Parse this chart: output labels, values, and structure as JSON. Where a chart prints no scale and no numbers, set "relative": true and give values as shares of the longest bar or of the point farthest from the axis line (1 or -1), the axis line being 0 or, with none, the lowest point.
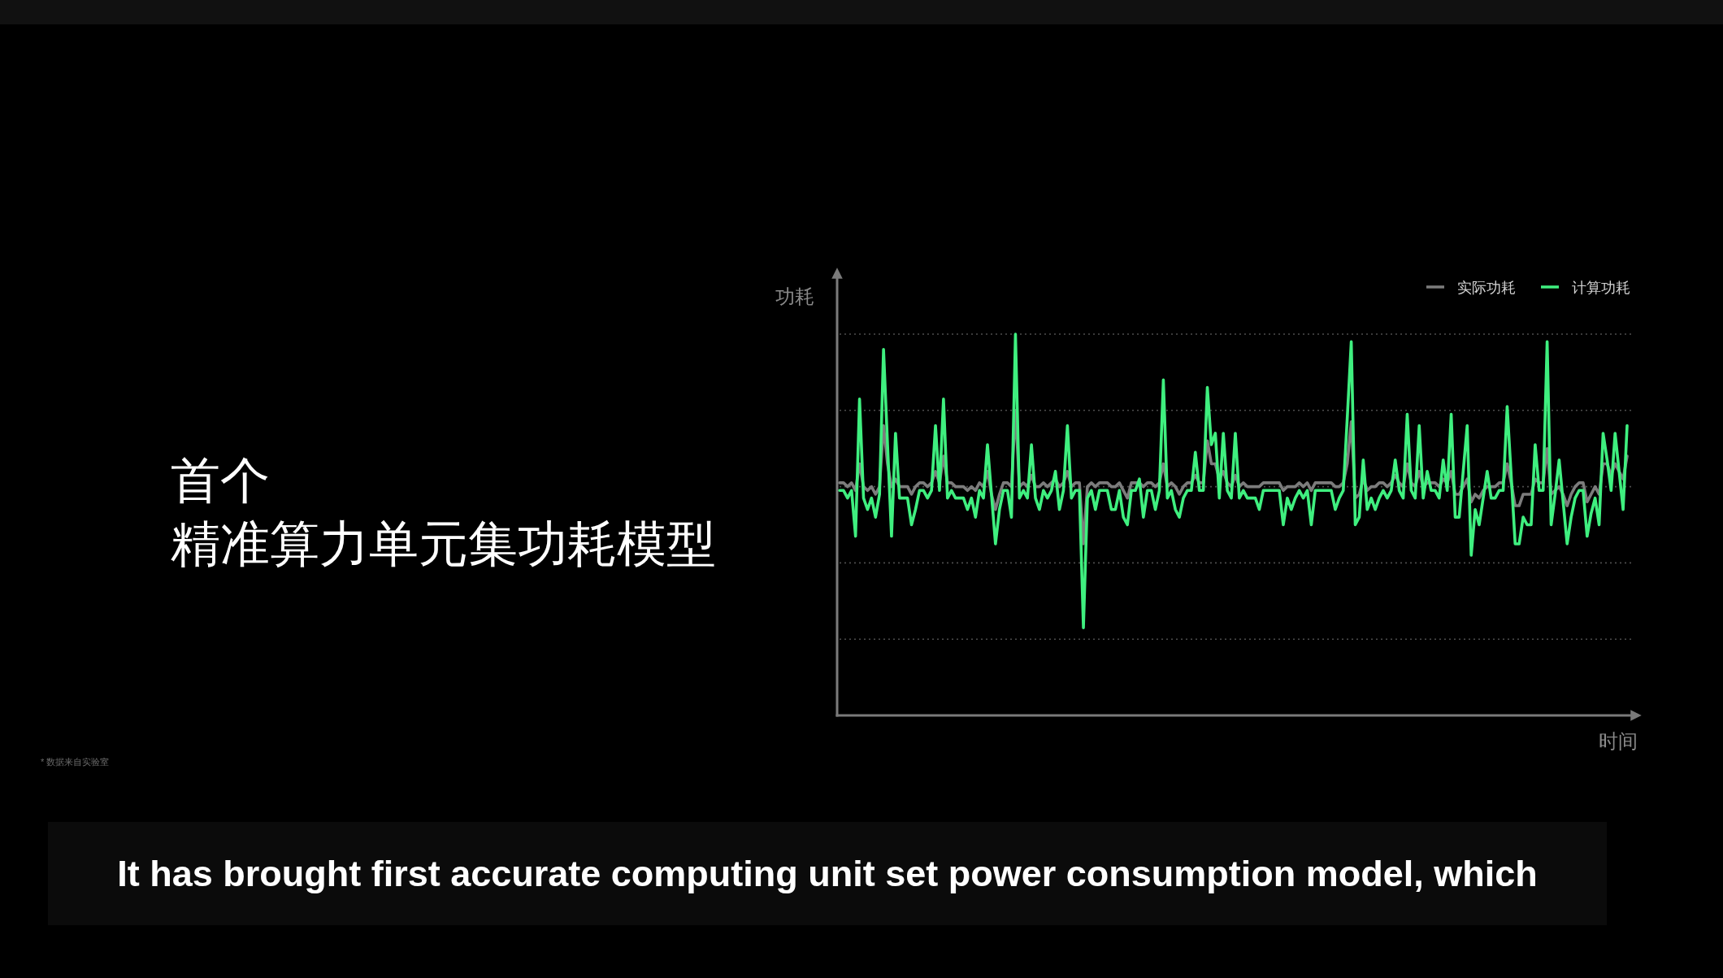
{
  "chart_data": {
    "type": "line",
    "title": "首个",
    "subtitle": "精准算力单元集功耗模型",
    "xlabel": "时间",
    "ylabel": "功耗",
    "categories": [
      null,
      null,
      null,
      null,
      null,
      null,
      null,
      null,
      null,
      null,
      null,
      null,
      null,
      null,
      null,
      null,
      null,
      null,
      null,
      null,
      null,
      null,
      null,
      null,
      null,
      null,
      null,
      null,
      null,
      null,
      null,
      null,
      null,
      null,
      null,
      null,
      null,
      null,
      null,
      null,
      null,
      null,
      null,
      null,
      null,
      null,
      null,
      null,
      null,
      null,
      null,
      null,
      null,
      null,
      null,
      null,
      null,
      null,
      null,
      null,
      null,
      null,
      null,
      null,
      null,
      null,
      null,
      null,
      null,
      null,
      null,
      null,
      null,
      null,
      null,
      null,
      null,
      null,
      null,
      null,
      null,
      null,
      null,
      null,
      null,
      null,
      null,
      null,
      null,
      null,
      null,
      null,
      null,
      null,
      null,
      null,
      null,
      null,
      null,
      null,
      null,
      null,
      null,
      null,
      null,
      null,
      null,
      null,
      null,
      null,
      null,
      null,
      null,
      null,
      null,
      null,
      null,
      null,
      null,
      null,
      null,
      null,
      null,
      null,
      null,
      null,
      null,
      null,
      null,
      null,
      null,
      null,
      null,
      null,
      null,
      null,
      null,
      null,
      null,
      null,
      null,
      null,
      null,
      null,
      null,
      null,
      null,
      null,
      null,
      null,
      null,
      null,
      null,
      null,
      null,
      null,
      null,
      null,
      null,
      null,
      null,
      null,
      null,
      null,
      null,
      null,
      null,
      null,
      null,
      null,
      null,
      null,
      null,
      null,
      null,
      null,
      null,
      null,
      null,
      null,
      null,
      null,
      null,
      null,
      null,
      null,
      null,
      null,
      null,
      null,
      null,
      null,
      null,
      null,
      null,
      null,
      null,
      null
    ],
    "series": [
      {
        "name": "实际功耗",
        "color": "#7c7c7c",
        "values": [
          0.61,
          0.61,
          0.6,
          0.61,
          0.59,
          0.66,
          0.6,
          0.59,
          0.6,
          0.58,
          0.6,
          0.76,
          0.66,
          0.6,
          0.62,
          0.6,
          0.6,
          0.6,
          0.58,
          0.6,
          0.61,
          0.61,
          0.6,
          0.61,
          0.64,
          0.61,
          0.68,
          0.61,
          0.61,
          0.6,
          0.6,
          0.6,
          0.59,
          0.6,
          0.59,
          0.61,
          0.6,
          0.64,
          0.58,
          0.54,
          0.58,
          0.61,
          0.61,
          0.6,
          0.8,
          0.6,
          0.61,
          0.6,
          0.63,
          0.6,
          0.6,
          0.61,
          0.6,
          0.61,
          0.62,
          0.6,
          0.61,
          0.64,
          0.6,
          0.61,
          0.61,
          0.45,
          0.6,
          0.61,
          0.6,
          0.61,
          0.61,
          0.61,
          0.6,
          0.6,
          0.61,
          0.59,
          0.57,
          0.61,
          0.61,
          0.61,
          0.6,
          0.61,
          0.61,
          0.6,
          0.61,
          0.66,
          0.6,
          0.61,
          0.6,
          0.58,
          0.6,
          0.61,
          0.61,
          0.63,
          0.61,
          0.61,
          0.72,
          0.66,
          0.66,
          0.62,
          0.64,
          0.61,
          0.6,
          0.63,
          0.6,
          0.61,
          0.6,
          0.6,
          0.6,
          0.6,
          0.61,
          0.61,
          0.61,
          0.61,
          0.61,
          0.59,
          0.6,
          0.6,
          0.6,
          0.61,
          0.6,
          0.61,
          0.59,
          0.61,
          0.61,
          0.61,
          0.61,
          0.61,
          0.6,
          0.6,
          0.61,
          0.66,
          0.77,
          0.57,
          0.58,
          0.62,
          0.59,
          0.6,
          0.6,
          0.61,
          0.61,
          0.6,
          0.61,
          0.63,
          0.61,
          0.6,
          0.66,
          0.61,
          0.6,
          0.64,
          0.6,
          0.61,
          0.61,
          0.61,
          0.6,
          0.62,
          0.61,
          0.64,
          0.58,
          0.58,
          0.6,
          0.62,
          0.56,
          0.58,
          0.57,
          0.59,
          0.6,
          0.6,
          0.6,
          0.61,
          0.61,
          0.66,
          0.61,
          0.55,
          0.55,
          0.58,
          0.58,
          0.58,
          0.62,
          0.61,
          0.61,
          0.7,
          0.58,
          0.59,
          0.6,
          0.58,
          0.55,
          0.58,
          0.6,
          0.61,
          0.61,
          0.56,
          0.58,
          0.6,
          0.58,
          0.66,
          0.66,
          0.63,
          0.66,
          0.64,
          0.62,
          0.68
        ]
      },
      {
        "name": "计算功耗",
        "color": "#3fef7f",
        "values": [
          0.59,
          0.59,
          0.57,
          0.59,
          0.47,
          0.83,
          0.57,
          0.54,
          0.57,
          0.52,
          0.58,
          0.96,
          0.71,
          0.47,
          0.74,
          0.57,
          0.57,
          0.57,
          0.5,
          0.54,
          0.59,
          0.59,
          0.57,
          0.59,
          0.76,
          0.59,
          0.83,
          0.57,
          0.59,
          0.57,
          0.57,
          0.57,
          0.54,
          0.57,
          0.52,
          0.59,
          0.57,
          0.71,
          0.58,
          0.45,
          0.54,
          0.59,
          0.59,
          0.52,
          1,
          0.57,
          0.59,
          0.57,
          0.71,
          0.57,
          0.54,
          0.59,
          0.57,
          0.59,
          0.64,
          0.54,
          0.59,
          0.76,
          0.57,
          0.59,
          0.59,
          0.23,
          0.57,
          0.59,
          0.54,
          0.59,
          0.59,
          0.59,
          0.54,
          0.54,
          0.59,
          0.52,
          0.5,
          0.59,
          0.59,
          0.62,
          0.52,
          0.59,
          0.59,
          0.54,
          0.59,
          0.88,
          0.57,
          0.59,
          0.54,
          0.52,
          0.57,
          0.59,
          0.59,
          0.69,
          0.59,
          0.59,
          0.86,
          0.71,
          0.74,
          0.57,
          0.74,
          0.59,
          0.57,
          0.74,
          0.57,
          0.59,
          0.57,
          0.57,
          0.57,
          0.54,
          0.59,
          0.59,
          0.59,
          0.59,
          0.59,
          0.5,
          0.57,
          0.54,
          0.57,
          0.59,
          0.57,
          0.59,
          0.5,
          0.59,
          0.59,
          0.59,
          0.59,
          0.59,
          0.54,
          0.57,
          0.59,
          0.78,
          0.98,
          0.5,
          0.52,
          0.67,
          0.54,
          0.57,
          0.54,
          0.57,
          0.59,
          0.57,
          0.59,
          0.67,
          0.59,
          0.57,
          0.79,
          0.59,
          0.57,
          0.76,
          0.57,
          0.64,
          0.59,
          0.59,
          0.57,
          0.67,
          0.59,
          0.79,
          0.52,
          0.52,
          0.64,
          0.76,
          0.42,
          0.54,
          0.5,
          0.57,
          0.64,
          0.57,
          0.57,
          0.59,
          0.59,
          0.81,
          0.63,
          0.45,
          0.45,
          0.52,
          0.5,
          0.5,
          0.71,
          0.59,
          0.59,
          0.98,
          0.5,
          0.58,
          0.67,
          0.56,
          0.45,
          0.52,
          0.57,
          0.59,
          0.59,
          0.47,
          0.53,
          0.57,
          0.5,
          0.74,
          0.67,
          0.59,
          0.74,
          0.64,
          0.54,
          0.76
        ]
      }
    ],
    "relative": true,
    "grid": "y",
    "legend": "top right",
    "annotations": [
      "* 数据来自实验室",
      "It has brought first accurate computing unit set power consumption model, which"
    ]
  }
}
